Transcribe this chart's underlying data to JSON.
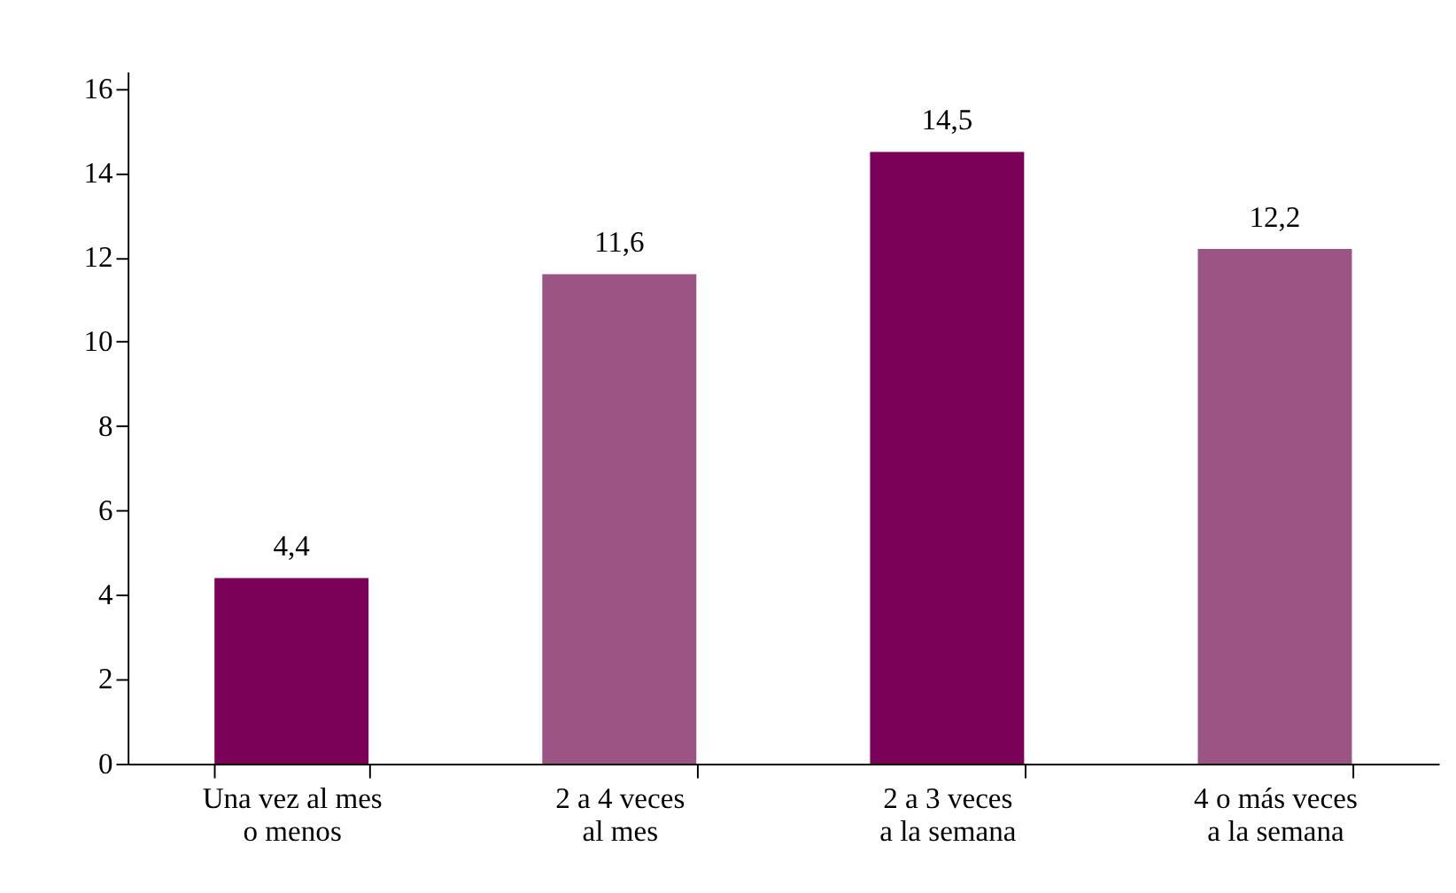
{
  "chart_data": {
    "type": "bar",
    "categories": [
      "Una vez al mes\no menos",
      "2 a 4 veces\nal mes",
      "2 a 3 veces\na la semana",
      "4 o más veces\na la semana"
    ],
    "values": [
      4.4,
      11.6,
      14.5,
      12.2
    ],
    "colors": [
      "#7b0057",
      "#9b5585",
      "#7b0057",
      "#9b5585"
    ],
    "value_labels": [
      "4,4",
      "11,6",
      "14,5",
      "12,2"
    ],
    "ylim": [
      0,
      16.4
    ],
    "yticks": [
      0,
      2,
      4,
      6,
      8,
      10,
      12,
      14,
      16
    ],
    "grid": false
  }
}
